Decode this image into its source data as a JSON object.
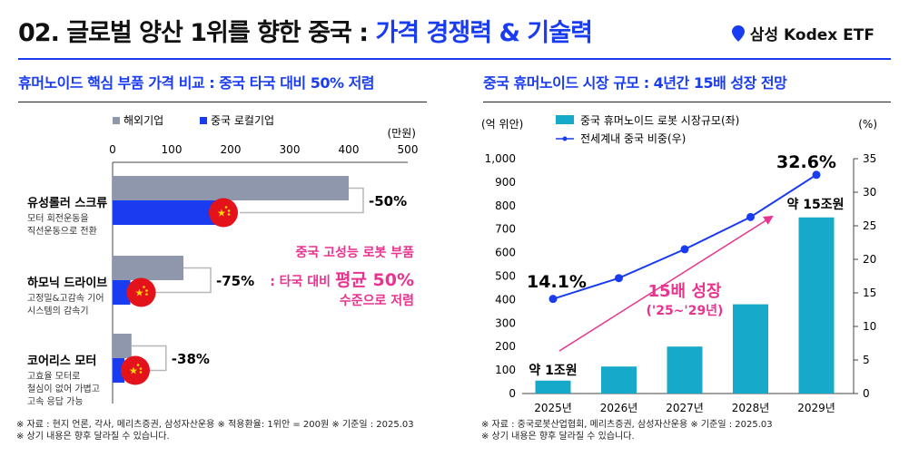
{
  "title": {
    "prefix": "02. 글로벌 양산 1위를 향한 중국 : ",
    "accent": "가격 경쟁력 & 기술력"
  },
  "brand": {
    "name": "삼성 Kodex ETF",
    "pin_color": "#1a3cf0"
  },
  "left": {
    "subtitle": "휴머노이드 핵심 부품 가격 비교 : 중국 타국 대비 50% 저렴",
    "legend": [
      "해외기업",
      "중국 로컬기업"
    ],
    "unit": "(만원)",
    "annotation": {
      "line1": "중국 고성능 로봇 부품",
      "line2_pre": ": 타국 대비 ",
      "line2_bold": "평균 50%",
      "line3": "수준으로 저렴"
    },
    "footnote1": "※ 자료 : 현지 언론, 각사, 메리츠증권, 삼성자산운용 ※ 적용환율: 1위안 = 200원 ※ 기준일 : 2025.03",
    "footnote2": "※ 상기 내용은 향후 달라질 수 있습니다."
  },
  "right": {
    "subtitle": "중국 휴머노이드 시장 규모 : 4년간 15배 성장 전망",
    "left_unit": "(억 위안)",
    "right_unit": "(%)",
    "legend_bar": "중국 휴머노이드 로봇 시장규모(좌)",
    "legend_line": "전세계내 중국 비중(우)",
    "label_first_pct": "14.1%",
    "label_last_pct": "32.6%",
    "label_first_bar": "약 1조원",
    "label_last_bar": "약 15조원",
    "growth_line1": "15배 성장",
    "growth_line2": "('25~'29년)",
    "footnote1": "※ 자료 : 중국로봇산업협회, 메리츠증권, 삼성자산운용 ※ 기준일 : 2025.03",
    "footnote2": "※ 상기 내용은 향후 달라질 수 있습니다."
  },
  "colors": {
    "blue": "#1a3cf0",
    "gray": "#8f97ad",
    "teal": "#17a9c9",
    "pink": "#e8338f",
    "red": "#e3121b",
    "star": "#ffde00"
  },
  "chart_data": [
    {
      "type": "bar",
      "orientation": "horizontal",
      "title": "휴머노이드 핵심 부품 가격 비교",
      "categories": [
        "유성롤러 스크류",
        "하모닉 드라이브",
        "코어리스 모터"
      ],
      "category_descriptions": [
        [
          "모터 회전운동을",
          "직선운동으로 전환"
        ],
        [
          "고정밀&고감속 기어",
          "시스템의 감속기"
        ],
        [
          "고효율 모터로",
          "철심이 없어 가볍고",
          "고속 응답 가능"
        ]
      ],
      "series": [
        {
          "name": "해외기업",
          "values": [
            400,
            120,
            32
          ]
        },
        {
          "name": "중국 로컬기업",
          "values": [
            200,
            30,
            20
          ]
        }
      ],
      "diff_labels": [
        "-50%",
        "-75%",
        "-38%"
      ],
      "xlim": [
        0,
        500
      ],
      "xticks": [
        0,
        100,
        200,
        300,
        400,
        500
      ],
      "xlabel": "(만원)"
    },
    {
      "type": "bar+line",
      "title": "중국 휴머노이드 시장 규모",
      "categories": [
        "2025년",
        "2026년",
        "2027년",
        "2028년",
        "2029년"
      ],
      "series": [
        {
          "name": "중국 휴머노이드 로봇 시장규모(좌)",
          "type": "bar",
          "axis": "left",
          "values": [
            55,
            115,
            200,
            380,
            750
          ]
        },
        {
          "name": "전세계내 중국 비중(우)",
          "type": "line",
          "axis": "right",
          "values": [
            14.1,
            17.2,
            21.5,
            26.3,
            32.6
          ]
        }
      ],
      "ylim_left": [
        0,
        1000
      ],
      "yticks_left": [
        "0",
        "100",
        "200",
        "300",
        "400",
        "500",
        "600",
        "700",
        "800",
        "900",
        "1,000"
      ],
      "ylim_right": [
        0,
        35
      ],
      "yticks_right": [
        "0",
        "5",
        "10",
        "15",
        "20",
        "25",
        "30",
        "35"
      ]
    }
  ]
}
